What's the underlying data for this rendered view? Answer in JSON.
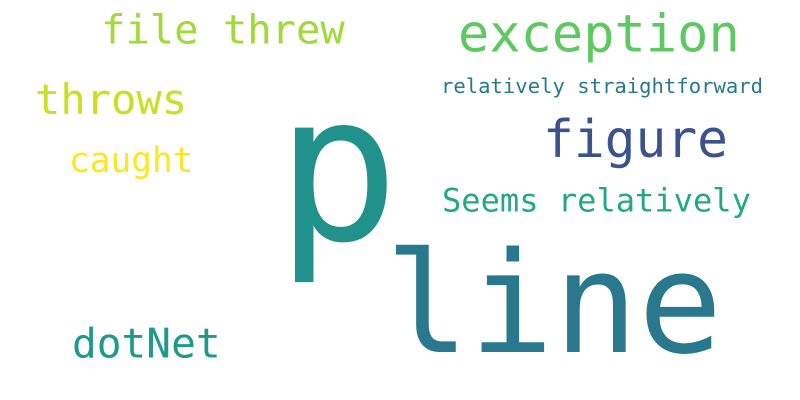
{
  "word_cloud": {
    "words": [
      {
        "id": "w-p",
        "text": "p",
        "color": "#21918c"
      },
      {
        "id": "w-line",
        "text": "line",
        "color": "#2a788e"
      },
      {
        "id": "w-exception",
        "text": "exception",
        "color": "#5ec962"
      },
      {
        "id": "w-figure",
        "text": "figure",
        "color": "#3b528b"
      },
      {
        "id": "w-file-threw",
        "text": "file threw",
        "color": "#a0da39"
      },
      {
        "id": "w-throws",
        "text": "throws",
        "color": "#c8e020"
      },
      {
        "id": "w-caught",
        "text": "caught",
        "color": "#fde725"
      },
      {
        "id": "w-dotnet",
        "text": "dotNet",
        "color": "#1f998a"
      },
      {
        "id": "w-seems",
        "text": "Seems relatively",
        "color": "#22a884"
      },
      {
        "id": "w-straight",
        "text": "relatively straightforward",
        "color": "#2a788e"
      }
    ]
  }
}
